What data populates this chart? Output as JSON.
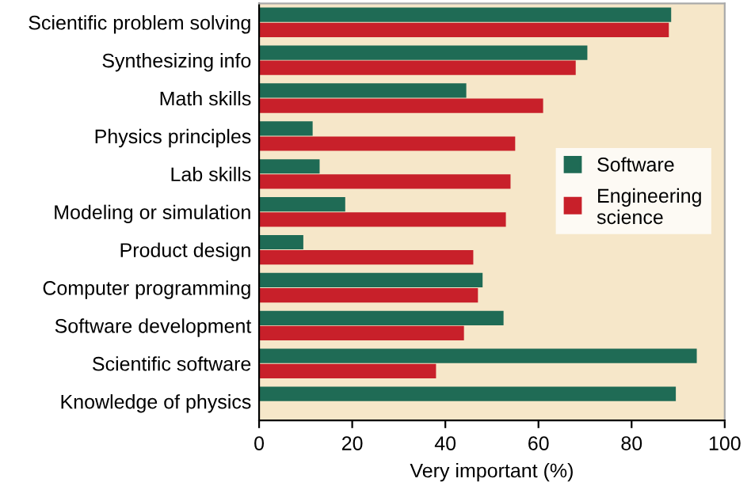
{
  "chart_data": {
    "type": "bar",
    "orientation": "horizontal",
    "xlabel": "Very important (%)",
    "categories": [
      "Scientific problem solving",
      "Synthesizing info",
      "Math skills",
      "Physics principles",
      "Lab skills",
      "Modeling or simulation",
      "Product design",
      "Computer programming",
      "Software development",
      "Scientific software",
      "Knowledge of physics"
    ],
    "series": [
      {
        "name": "Software",
        "color": "#1f6b55",
        "values": [
          88.5,
          70.5,
          44.5,
          11.5,
          13,
          18.5,
          9.5,
          48,
          52.5,
          94,
          89.5
        ]
      },
      {
        "name": "Engineering science",
        "color": "#c8202a",
        "values": [
          88,
          68,
          61,
          55,
          54,
          53,
          46,
          47,
          44,
          38,
          null
        ]
      }
    ],
    "xlim": [
      0,
      100
    ],
    "xticks": [
      0,
      20,
      40,
      60,
      80,
      100
    ],
    "grid": false,
    "legend": "right"
  }
}
